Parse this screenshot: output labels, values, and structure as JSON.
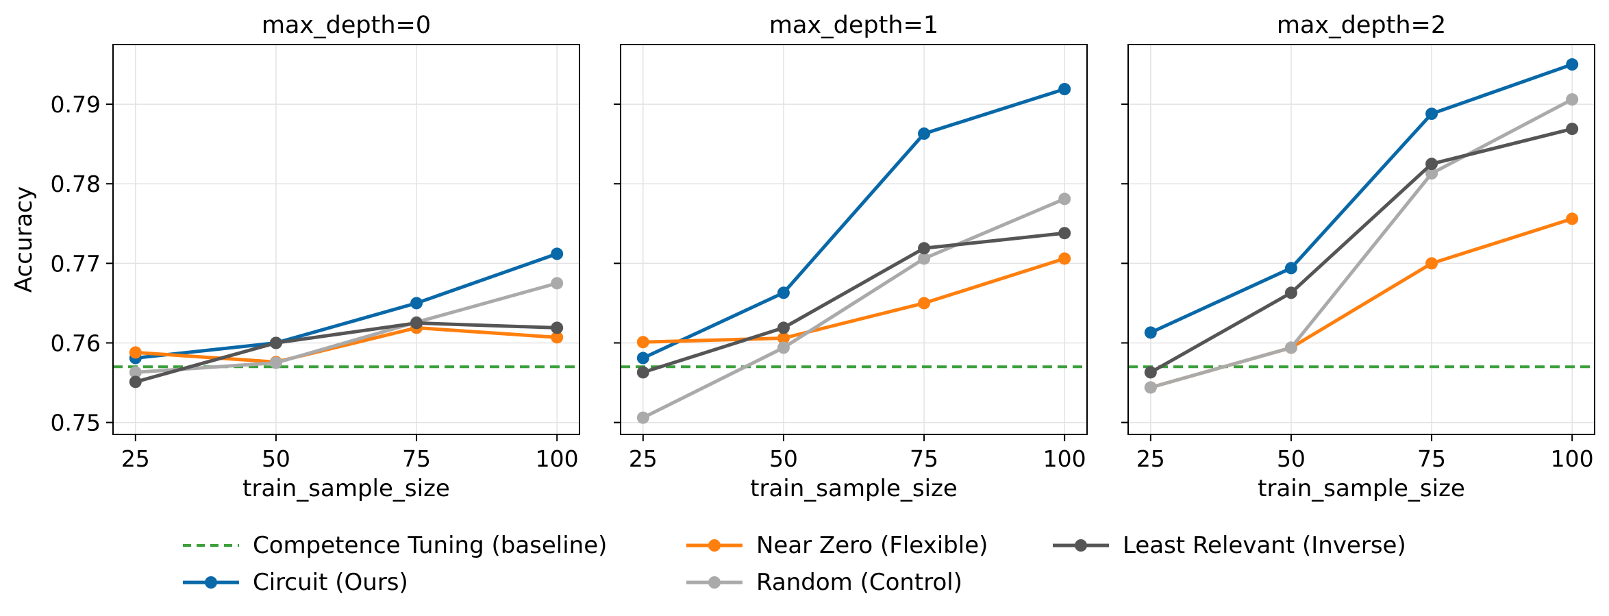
{
  "chart_data": [
    {
      "type": "line",
      "title": "max_depth=0",
      "xlabel": "train_sample_size",
      "ylabel": "Accuracy",
      "x": [
        25,
        50,
        75,
        100
      ],
      "xlim": [
        21,
        104
      ],
      "ylim": [
        0.7485,
        0.7975
      ],
      "yticks": [
        "0.75",
        "0.76",
        "0.77",
        "0.78",
        "0.79"
      ],
      "xticks": [
        "25",
        "50",
        "75",
        "100"
      ],
      "grid": true,
      "baseline": 0.757,
      "series": [
        {
          "name": "Circuit (Ours)",
          "values": [
            0.7581,
            0.76,
            0.765,
            0.7712
          ]
        },
        {
          "name": "Near Zero (Flexible)",
          "values": [
            0.7588,
            0.7576,
            0.7619,
            0.7607
          ]
        },
        {
          "name": "Random (Control)",
          "values": [
            0.7563,
            0.7575,
            0.7626,
            0.7675
          ]
        },
        {
          "name": "Least Relevant (Inverse)",
          "values": [
            0.7551,
            0.76,
            0.7625,
            0.7619
          ]
        }
      ]
    },
    {
      "type": "line",
      "title": "max_depth=1",
      "xlabel": "train_sample_size",
      "ylabel": "",
      "x": [
        25,
        50,
        75,
        100
      ],
      "xlim": [
        21,
        104
      ],
      "ylim": [
        0.7485,
        0.7975
      ],
      "xticks": [
        "25",
        "50",
        "75",
        "100"
      ],
      "grid": true,
      "baseline": 0.757,
      "series": [
        {
          "name": "Circuit (Ours)",
          "values": [
            0.7581,
            0.7663,
            0.7863,
            0.7919
          ]
        },
        {
          "name": "Near Zero (Flexible)",
          "values": [
            0.7601,
            0.7606,
            0.765,
            0.7706
          ]
        },
        {
          "name": "Random (Control)",
          "values": [
            0.7506,
            0.7594,
            0.7706,
            0.7781
          ]
        },
        {
          "name": "Least Relevant (Inverse)",
          "values": [
            0.7563,
            0.7619,
            0.7719,
            0.7738
          ]
        }
      ]
    },
    {
      "type": "line",
      "title": "max_depth=2",
      "xlabel": "train_sample_size",
      "ylabel": "",
      "x": [
        25,
        50,
        75,
        100
      ],
      "xlim": [
        21,
        104
      ],
      "ylim": [
        0.7485,
        0.7975
      ],
      "xticks": [
        "25",
        "50",
        "75",
        "100"
      ],
      "grid": true,
      "baseline": 0.757,
      "series": [
        {
          "name": "Circuit (Ours)",
          "values": [
            0.7613,
            0.7694,
            0.7888,
            0.795
          ]
        },
        {
          "name": "Near Zero (Flexible)",
          "values": [
            0.7544,
            0.7594,
            0.77,
            0.7756
          ]
        },
        {
          "name": "Random (Control)",
          "values": [
            0.7544,
            0.7594,
            0.7813,
            0.7906
          ]
        },
        {
          "name": "Least Relevant (Inverse)",
          "values": [
            0.7563,
            0.7663,
            0.7825,
            0.7869
          ]
        }
      ]
    }
  ],
  "colors": {
    "Circuit (Ours)": "#0868a8",
    "Near Zero (Flexible)": "#ff7f0e",
    "Random (Control)": "#aaaaaa",
    "Least Relevant (Inverse)": "#555555",
    "baseline": "#3ca03c",
    "grid": "#e3e3e3"
  },
  "legend": {
    "baseline_label": "Competence Tuning (baseline)",
    "circuit_label": "Circuit (Ours)",
    "near_zero_label": "Near Zero (Flexible)",
    "random_label": "Random (Control)",
    "least_label": "Least Relevant (Inverse)"
  }
}
